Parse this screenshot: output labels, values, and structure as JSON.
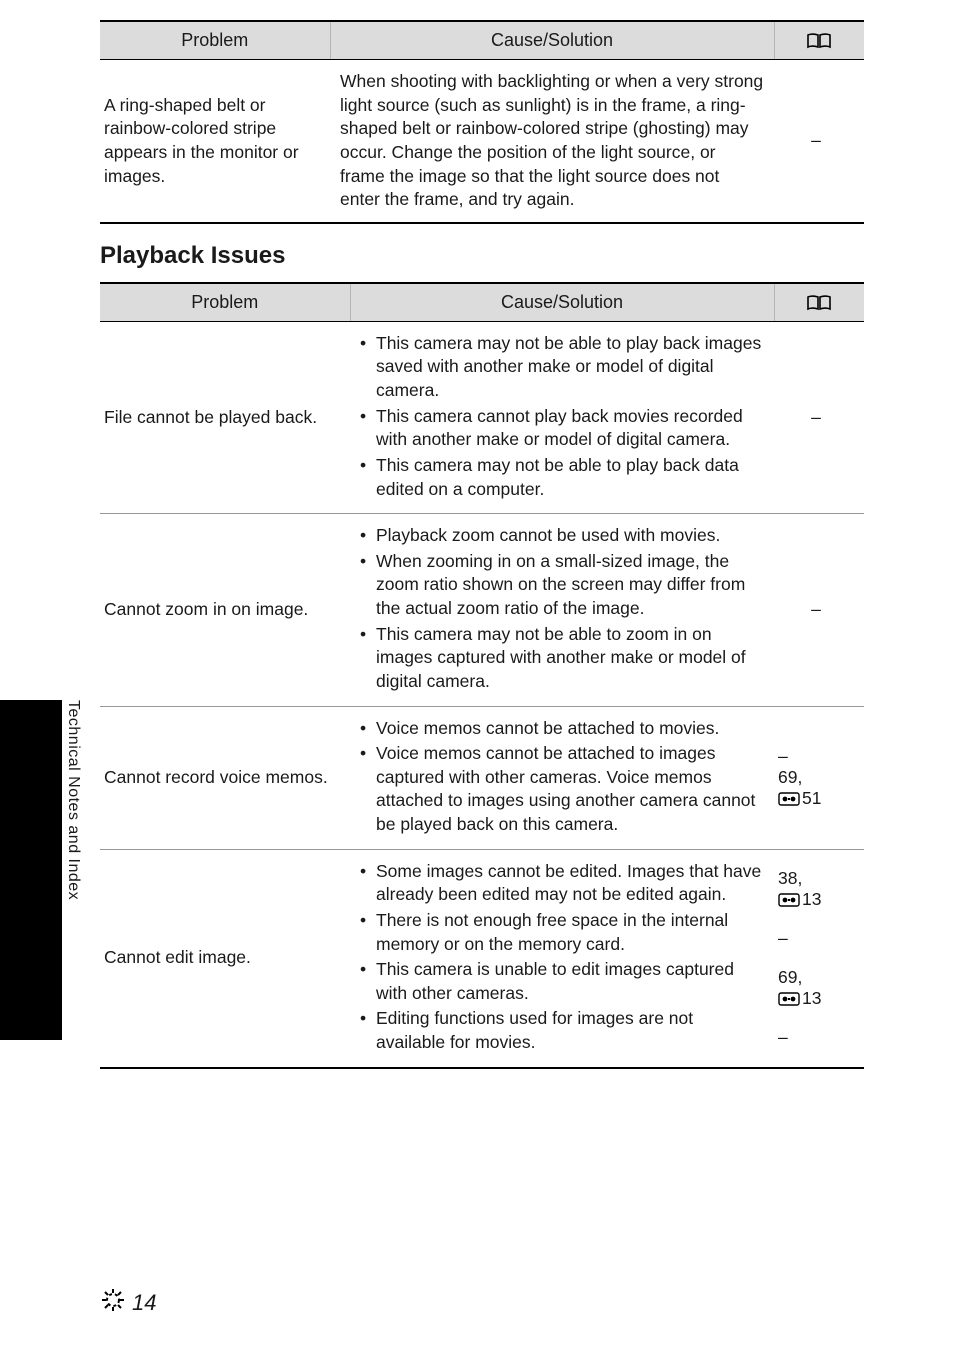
{
  "sidebar": {
    "label": "Technical Notes and Index"
  },
  "table1": {
    "headers": {
      "problem": "Problem",
      "cause": "Cause/Solution"
    },
    "rows": [
      {
        "problem": "A ring-shaped belt or rainbow-colored stripe appears in the monitor or images.",
        "cause_plain": "When shooting with backlighting or when a very strong light source (such as sunlight) is in the frame, a ring-shaped belt or rainbow-colored stripe (ghosting) may occur. Change the position of the light source, or frame the image so that the light source does not enter the frame, and try again.",
        "ref": "–"
      }
    ]
  },
  "section2_title": "Playback Issues",
  "table2": {
    "headers": {
      "problem": "Problem",
      "cause": "Cause/Solution"
    },
    "rows": [
      {
        "problem": "File cannot be played back.",
        "cause": [
          "This camera may not be able to play back images saved with another make or model of digital camera.",
          "This camera cannot play back movies recorded with another make or model of digital camera.",
          "This camera may not be able to play back data edited on a computer."
        ],
        "ref_plain": "–"
      },
      {
        "problem": "Cannot zoom in on image.",
        "cause": [
          "Playback zoom cannot be used with movies.",
          "When zooming in on a small-sized image, the zoom ratio shown on the screen may differ from the actual zoom ratio of the image.",
          "This camera may not be able to zoom in on images captured with another make or model of digital camera."
        ],
        "ref_plain": "–"
      },
      {
        "problem": "Cannot record voice memos.",
        "cause": [
          "Voice memos cannot be attached to movies.",
          "Voice memos cannot be attached to images captured with other cameras. Voice memos attached to images using another camera cannot be played back on this camera."
        ],
        "ref_lines": [
          "–",
          "69,",
          "51"
        ],
        "ref_has_eicon": [
          false,
          false,
          true
        ]
      },
      {
        "problem": "Cannot edit image.",
        "cause": [
          "Some images cannot be edited. Images that have already been edited may not be edited again.",
          "There is not enough free space in the internal memory or on the memory card.",
          "This camera is unable to edit images captured with other cameras.",
          "Editing functions used for images are not available for movies."
        ],
        "ref_groups": [
          [
            "38,",
            "E13"
          ],
          [
            "–"
          ],
          [
            "69,",
            "E13"
          ],
          [
            "–"
          ]
        ]
      }
    ]
  },
  "footer": {
    "page": "14"
  }
}
